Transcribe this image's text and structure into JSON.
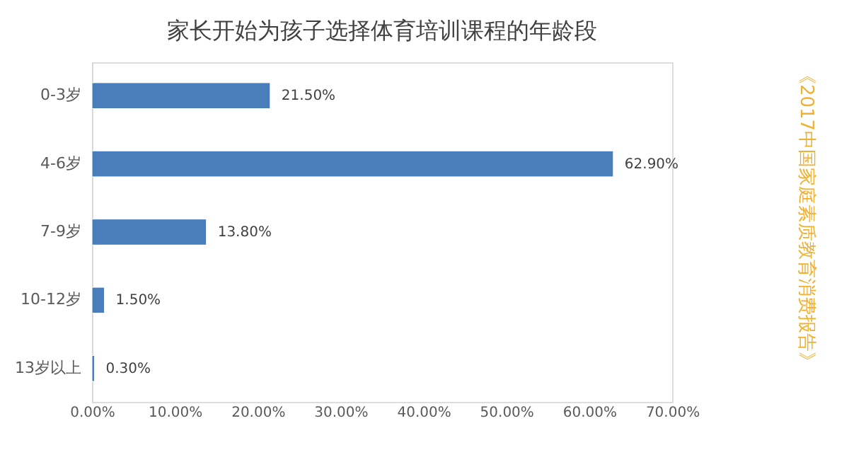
{
  "chart_data": {
    "type": "bar",
    "orientation": "horizontal",
    "title": "家长开始为孩子选择体育培训课程的年龄段",
    "categories": [
      "0-3岁",
      "4-6岁",
      "7-9岁",
      "10-12岁",
      "13岁以上"
    ],
    "values": [
      21.5,
      62.9,
      13.8,
      1.5,
      0.3
    ],
    "value_labels": [
      "21.50%",
      "62.90%",
      "13.80%",
      "1.50%",
      "0.30%"
    ],
    "color": "#4a7ebb",
    "xlim": [
      0,
      70
    ],
    "xticks": [
      {
        "value": 0,
        "label": "0.00%"
      },
      {
        "value": 10,
        "label": "10.00%"
      },
      {
        "value": 20,
        "label": "20.00%"
      },
      {
        "value": 30,
        "label": "30.00%"
      },
      {
        "value": 40,
        "label": "40.00%"
      },
      {
        "value": 50,
        "label": "50.00%"
      },
      {
        "value": 60,
        "label": "60.00%"
      },
      {
        "value": 70,
        "label": "70.00%"
      }
    ],
    "grid": false,
    "annotations": [
      "《2017中国家庭素质教育消费报告》"
    ]
  }
}
